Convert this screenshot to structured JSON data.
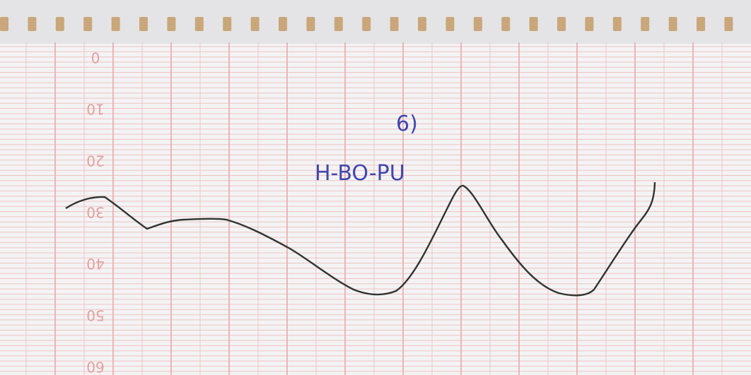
{
  "scale_labels": [
    "0",
    "10",
    "20",
    "30",
    "40",
    "50",
    "60"
  ],
  "annotations": {
    "number": "6)",
    "label": "H-BO-PU"
  }
}
